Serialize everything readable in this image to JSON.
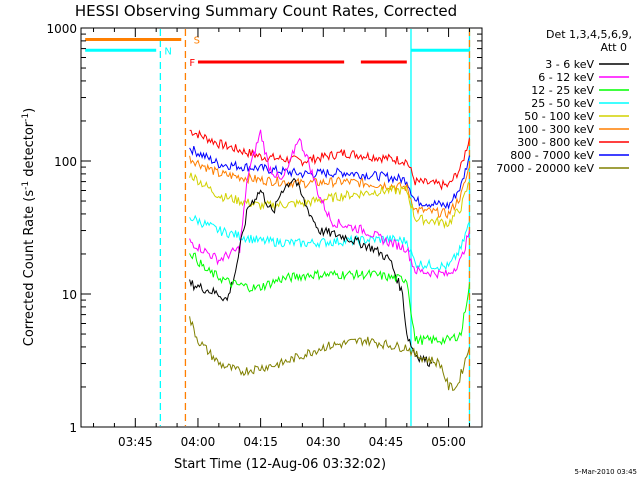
{
  "chart_data": {
    "type": "line",
    "title": "HESSI Observing Summary Count Rates, Corrected",
    "xlabel": "Start Time (12-Aug-06 03:32:02)",
    "ylabel": "Corrected Count Rate (s⁻¹ detector⁻¹)",
    "ylabel_main": "Corrected Count Rate (s",
    "ylabel_mid": " detector",
    "ylabel_end": ")",
    "ylabel_sup": "-1",
    "y_scale": "log",
    "ylim": [
      1,
      1000
    ],
    "xlim": [
      "03:32",
      "05:08"
    ],
    "x_ticks": [
      {
        "t": "03:45",
        "label": "03:45"
      },
      {
        "t": "04:00",
        "label": "04:00"
      },
      {
        "t": "04:15",
        "label": "04:15"
      },
      {
        "t": "04:30",
        "label": "04:30"
      },
      {
        "t": "04:45",
        "label": "04:45"
      },
      {
        "t": "05:00",
        "label": "05:00"
      }
    ],
    "y_ticks": [
      {
        "v": 1,
        "label": "1"
      },
      {
        "v": 10,
        "label": "10"
      },
      {
        "v": 100,
        "label": "100"
      },
      {
        "v": 1000,
        "label": "1000"
      }
    ],
    "legend": {
      "placement": "right",
      "header_line1": "Det 1,3,4,5,6,9,",
      "header_line2": "Att 0",
      "entries": [
        {
          "label": "3 - 6 keV",
          "color": "#000000"
        },
        {
          "label": "6 - 12 keV",
          "color": "#ff00ff"
        },
        {
          "label": "12 - 25 keV",
          "color": "#00ff00"
        },
        {
          "label": "25 - 50 keV",
          "color": "#00ffff"
        },
        {
          "label": "50 - 100 keV",
          "color": "#d2d200"
        },
        {
          "label": "100 - 300 keV",
          "color": "#ff7f00"
        },
        {
          "label": "300 - 800 keV",
          "color": "#ff0000"
        },
        {
          "label": "800 - 7000 keV",
          "color": "#0000ff"
        },
        {
          "label": "7000 - 20000 keV",
          "color": "#808000"
        }
      ]
    },
    "series": [
      {
        "color": "#ff0000",
        "points": [
          [
            "03:58",
            170
          ],
          [
            "04:05",
            135
          ],
          [
            "04:15",
            108
          ],
          [
            "04:25",
            100
          ],
          [
            "04:35",
            115
          ],
          [
            "04:45",
            105
          ],
          [
            "04:50",
            100
          ],
          [
            "04:52",
            70
          ],
          [
            "05:00",
            65
          ],
          [
            "05:03",
            90
          ],
          [
            "05:05",
            150
          ]
        ]
      },
      {
        "color": "#0000ff",
        "points": [
          [
            "03:58",
            125
          ],
          [
            "04:05",
            95
          ],
          [
            "04:15",
            88
          ],
          [
            "04:25",
            80
          ],
          [
            "04:35",
            82
          ],
          [
            "04:45",
            76
          ],
          [
            "04:50",
            72
          ],
          [
            "04:52",
            50
          ],
          [
            "05:00",
            46
          ],
          [
            "05:03",
            65
          ],
          [
            "05:05",
            110
          ]
        ]
      },
      {
        "color": "#ff7f00",
        "points": [
          [
            "03:58",
            105
          ],
          [
            "04:05",
            80
          ],
          [
            "04:15",
            72
          ],
          [
            "04:25",
            68
          ],
          [
            "04:35",
            70
          ],
          [
            "04:45",
            66
          ],
          [
            "04:50",
            63
          ],
          [
            "04:52",
            43
          ],
          [
            "05:00",
            40
          ],
          [
            "05:03",
            55
          ],
          [
            "05:05",
            90
          ]
        ]
      },
      {
        "color": "#d2d200",
        "points": [
          [
            "03:58",
            80
          ],
          [
            "04:05",
            55
          ],
          [
            "04:15",
            46
          ],
          [
            "04:25",
            48
          ],
          [
            "04:35",
            55
          ],
          [
            "04:45",
            60
          ],
          [
            "04:50",
            60
          ],
          [
            "04:52",
            37
          ],
          [
            "05:00",
            34
          ],
          [
            "05:03",
            45
          ],
          [
            "05:05",
            70
          ]
        ]
      },
      {
        "color": "#00ffff",
        "points": [
          [
            "03:58",
            38
          ],
          [
            "04:05",
            30
          ],
          [
            "04:15",
            25
          ],
          [
            "04:25",
            24
          ],
          [
            "04:35",
            25
          ],
          [
            "04:45",
            26
          ],
          [
            "04:50",
            25
          ],
          [
            "04:52",
            17
          ],
          [
            "05:00",
            16
          ],
          [
            "05:03",
            22
          ],
          [
            "05:05",
            35
          ]
        ]
      },
      {
        "color": "#ff00ff",
        "points": [
          [
            "03:58",
            25
          ],
          [
            "04:05",
            18
          ],
          [
            "04:10",
            22
          ],
          [
            "04:12",
            80
          ],
          [
            "04:14",
            130
          ],
          [
            "04:15",
            165
          ],
          [
            "04:17",
            90
          ],
          [
            "04:20",
            70
          ],
          [
            "04:22",
            95
          ],
          [
            "04:24",
            150
          ],
          [
            "04:26",
            110
          ],
          [
            "04:29",
            55
          ],
          [
            "04:32",
            35
          ],
          [
            "04:40",
            30
          ],
          [
            "04:45",
            25
          ],
          [
            "04:50",
            22
          ],
          [
            "04:52",
            15
          ],
          [
            "05:00",
            14
          ],
          [
            "05:03",
            18
          ],
          [
            "05:05",
            30
          ]
        ]
      },
      {
        "color": "#000000",
        "points": [
          [
            "03:58",
            12
          ],
          [
            "04:05",
            10
          ],
          [
            "04:07",
            9
          ],
          [
            "04:09",
            15
          ],
          [
            "04:12",
            45
          ],
          [
            "04:15",
            60
          ],
          [
            "04:18",
            40
          ],
          [
            "04:20",
            60
          ],
          [
            "04:23",
            75
          ],
          [
            "04:26",
            45
          ],
          [
            "04:29",
            30
          ],
          [
            "04:35",
            27
          ],
          [
            "04:42",
            22
          ],
          [
            "04:46",
            18
          ],
          [
            "04:49",
            10
          ],
          [
            "04:50",
            5
          ],
          [
            "04:52",
            3.5
          ],
          [
            "04:56",
            3
          ]
        ]
      },
      {
        "color": "#00ff00",
        "points": [
          [
            "03:58",
            21
          ],
          [
            "04:02",
            15
          ],
          [
            "04:08",
            12
          ],
          [
            "04:14",
            11
          ],
          [
            "04:20",
            13
          ],
          [
            "04:27",
            14
          ],
          [
            "04:35",
            14
          ],
          [
            "04:42",
            14
          ],
          [
            "04:48",
            13
          ],
          [
            "04:50",
            13
          ],
          [
            "04:52",
            4.5
          ],
          [
            "05:00",
            4.5
          ],
          [
            "05:03",
            5
          ],
          [
            "05:05",
            12
          ]
        ]
      },
      {
        "color": "#808000",
        "points": [
          [
            "03:58",
            6.5
          ],
          [
            "04:00",
            4.5
          ],
          [
            "04:05",
            3
          ],
          [
            "04:10",
            2.6
          ],
          [
            "04:20",
            3
          ],
          [
            "04:30",
            4
          ],
          [
            "04:40",
            4.5
          ],
          [
            "04:48",
            4
          ],
          [
            "04:50",
            4
          ],
          [
            "04:52",
            3.5
          ],
          [
            "04:58",
            3
          ],
          [
            "05:00",
            2
          ],
          [
            "05:02",
            2
          ],
          [
            "05:05",
            4
          ]
        ]
      }
    ],
    "flags": [
      {
        "label": "S",
        "color": "#ff7f00",
        "level": 820,
        "segments": [
          [
            "03:33",
            "03:56"
          ]
        ],
        "label_at": "03:58"
      },
      {
        "label": "N",
        "color": "#00ffff",
        "level": 680,
        "segments": [
          [
            "03:33",
            "03:50"
          ],
          [
            "04:51",
            "05:05"
          ]
        ],
        "label_at": "03:51"
      },
      {
        "label": "F",
        "color": "#ff0000",
        "level": 555,
        "segments": [
          [
            "04:00",
            "04:35"
          ],
          [
            "04:39",
            "04:50"
          ]
        ],
        "label_at": "03:57"
      }
    ],
    "markers": [
      {
        "t": "03:51",
        "color": "#00ffff",
        "style": "dashed"
      },
      {
        "t": "03:57",
        "color": "#ff7f00",
        "style": "dashed"
      },
      {
        "t": "04:51",
        "color": "#00ffff",
        "style": "solid"
      },
      {
        "t": "05:05",
        "color": "#00ffff",
        "style": "solid"
      },
      {
        "t": "05:05",
        "color": "#ff7f00",
        "style": "dashed"
      }
    ],
    "grid": false
  },
  "footer": {
    "timestamp": "5-Mar-2010 03:45"
  }
}
